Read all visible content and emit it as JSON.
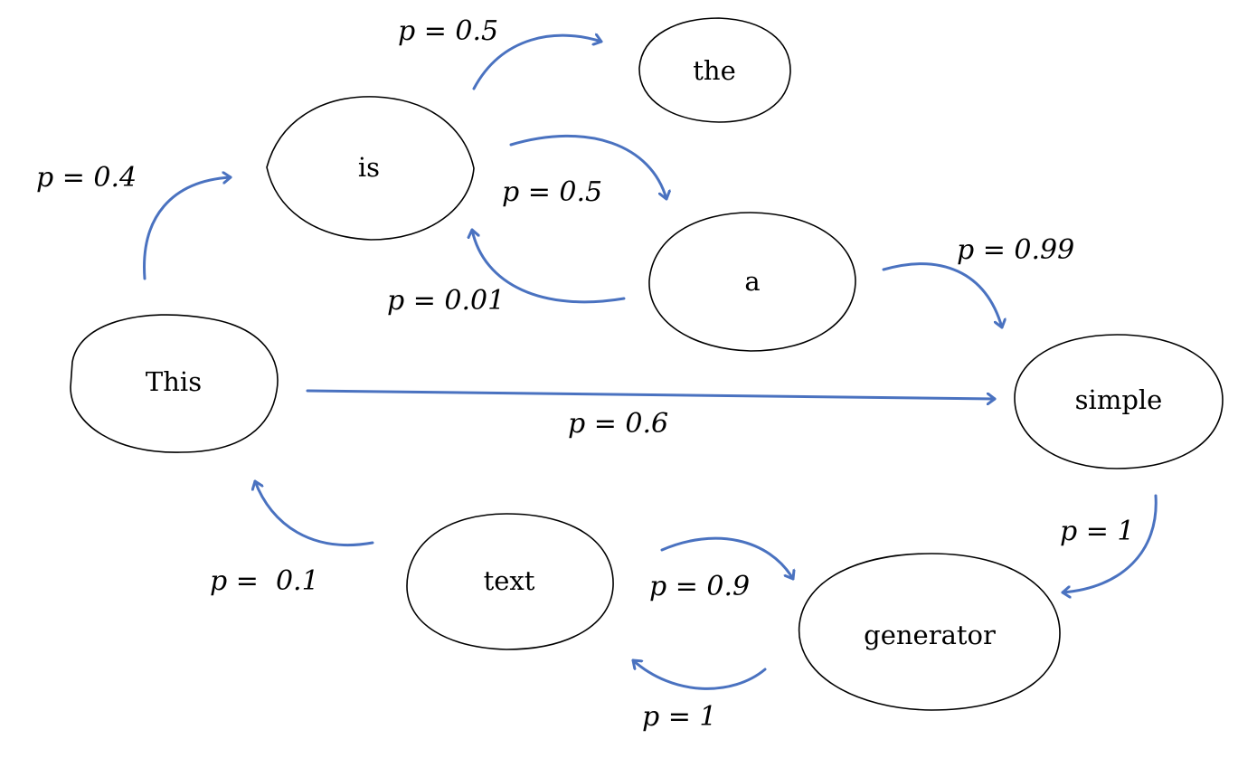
{
  "edge_color": "#4a72c0",
  "node_outline_color": "#000000",
  "nodes": {
    "this": "This",
    "is": "is",
    "the": "the",
    "a": "a",
    "simple": "simple",
    "text": "text",
    "generator": "generator"
  },
  "edges": {
    "this_to_is": {
      "from": "This",
      "to": "is",
      "label": "p = 0.4",
      "probability": 0.4
    },
    "is_to_the": {
      "from": "is",
      "to": "the",
      "label": "p = 0.5",
      "probability": 0.5
    },
    "is_to_a": {
      "from": "is",
      "to": "a",
      "label": "p = 0.5",
      "probability": 0.5
    },
    "a_to_is": {
      "from": "a",
      "to": "is",
      "label": "p = 0.01",
      "probability": 0.01
    },
    "a_to_simple": {
      "from": "a",
      "to": "simple",
      "label": "p = 0.99",
      "probability": 0.99
    },
    "this_to_simple": {
      "from": "This",
      "to": "simple",
      "label": "p = 0.6",
      "probability": 0.6
    },
    "simple_to_generator": {
      "from": "simple",
      "to": "generator",
      "label": "p = 1",
      "probability": 1
    },
    "text_to_generator": {
      "from": "text",
      "to": "generator",
      "label": "p = 0.9",
      "probability": 0.9
    },
    "generator_to_text": {
      "from": "generator",
      "to": "text",
      "label": "p = 1",
      "probability": 1
    },
    "text_to_this": {
      "from": "text",
      "to": "This",
      "label": "p =  0.1",
      "probability": 0.1
    }
  }
}
